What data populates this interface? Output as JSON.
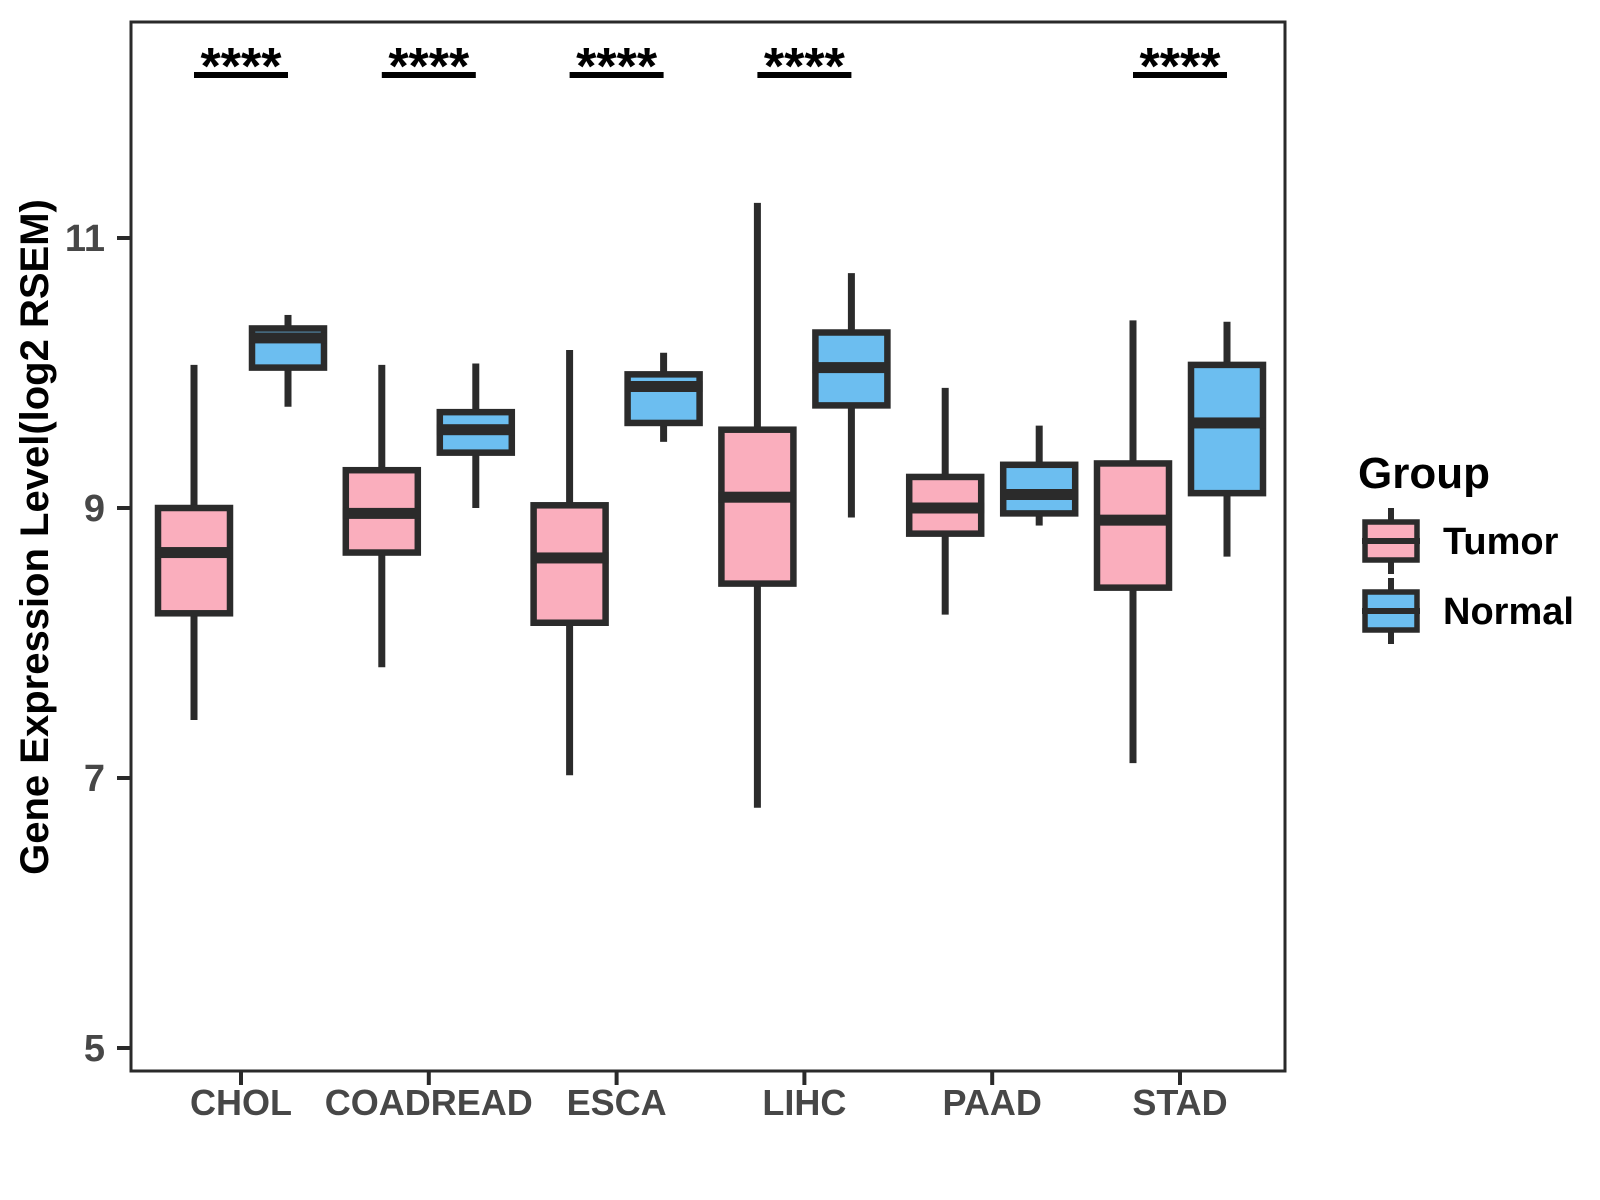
{
  "chart_data": {
    "type": "boxplot",
    "title": "",
    "xlabel": "",
    "ylabel": "Gene Expression Level(log2 RSEM)",
    "categories": [
      "CHOL",
      "COADREAD",
      "ESCA",
      "LIHC",
      "PAAD",
      "STAD"
    ],
    "yticks": [
      5,
      7,
      9,
      11
    ],
    "ylim": [
      4.8,
      12.6
    ],
    "grid": false,
    "legend": {
      "title": "Group",
      "position": "right",
      "entries": [
        {
          "label": "Tumor",
          "color": "#FAAEBD"
        },
        {
          "label": "Normal",
          "color": "#6CBEF0"
        }
      ]
    },
    "significance": [
      {
        "category": "CHOL",
        "label": "****"
      },
      {
        "category": "COADREAD",
        "label": "****"
      },
      {
        "category": "ESCA",
        "label": "****"
      },
      {
        "category": "LIHC",
        "label": "****"
      },
      {
        "category": "STAD",
        "label": "****"
      }
    ],
    "series": [
      {
        "name": "Tumor",
        "color": "#FAAEBD",
        "stats": [
          {
            "category": "CHOL",
            "min": 7.43,
            "q1": 8.22,
            "median": 8.67,
            "q3": 9.0,
            "max": 10.06
          },
          {
            "category": "COADREAD",
            "min": 7.82,
            "q1": 8.67,
            "median": 8.96,
            "q3": 9.28,
            "max": 10.06
          },
          {
            "category": "ESCA",
            "min": 7.02,
            "q1": 8.15,
            "median": 8.63,
            "q3": 9.02,
            "max": 10.17
          },
          {
            "category": "LIHC",
            "min": 6.78,
            "q1": 8.44,
            "median": 9.08,
            "q3": 9.58,
            "max": 11.26
          },
          {
            "category": "PAAD",
            "min": 8.21,
            "q1": 8.81,
            "median": 9.0,
            "q3": 9.23,
            "max": 9.89
          },
          {
            "category": "STAD",
            "min": 7.11,
            "q1": 8.41,
            "median": 8.91,
            "q3": 9.33,
            "max": 10.39
          }
        ]
      },
      {
        "name": "Normal",
        "color": "#6CBEF0",
        "stats": [
          {
            "category": "CHOL",
            "min": 9.75,
            "q1": 10.04,
            "median": 10.26,
            "q3": 10.33,
            "max": 10.43
          },
          {
            "category": "COADREAD",
            "min": 9.0,
            "q1": 9.41,
            "median": 9.58,
            "q3": 9.71,
            "max": 10.07
          },
          {
            "category": "ESCA",
            "min": 9.49,
            "q1": 9.63,
            "median": 9.9,
            "q3": 9.99,
            "max": 10.15
          },
          {
            "category": "LIHC",
            "min": 8.93,
            "q1": 9.76,
            "median": 10.04,
            "q3": 10.3,
            "max": 10.74
          },
          {
            "category": "PAAD",
            "min": 8.87,
            "q1": 8.96,
            "median": 9.1,
            "q3": 9.32,
            "max": 9.61
          },
          {
            "category": "STAD",
            "min": 8.64,
            "q1": 9.11,
            "median": 9.63,
            "q3": 10.06,
            "max": 10.38
          }
        ]
      }
    ],
    "style": {
      "background": "#FFFFFF",
      "box_border_color": "#2B2B2B",
      "median_color": "#2B2B2B",
      "axis_color": "#2A2A2A",
      "tick_label_color": "#474747",
      "axis_title_color": "#000000",
      "significance_color": "#000000",
      "legend_text_color": "#000000"
    }
  }
}
